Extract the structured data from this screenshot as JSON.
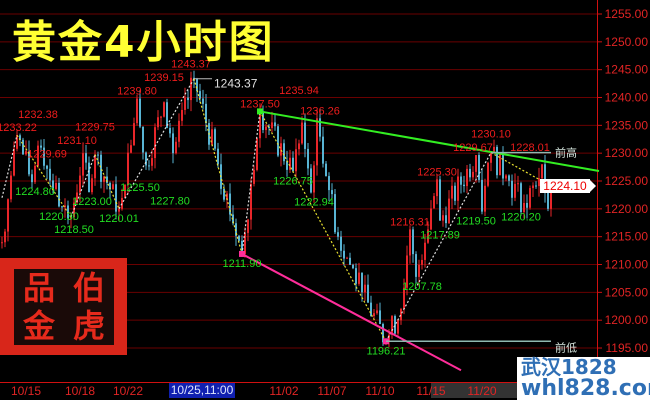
{
  "chart_data": {
    "type": "candlestick",
    "title": "黄金4小时图",
    "ylim": [
      1195,
      1255
    ],
    "yticks": [
      "1255.00",
      "1250.00",
      "1245.00",
      "1240.00",
      "1235.00",
      "1230.00",
      "1225.00",
      "1220.00",
      "1215.00",
      "1210.00",
      "1205.00",
      "1200.00",
      "1195.00"
    ],
    "xticks": [
      {
        "label": "10/15",
        "bar": 8
      },
      {
        "label": "10/18",
        "bar": 26
      },
      {
        "label": "10/22",
        "bar": 42
      },
      {
        "label": "11/02",
        "bar": 94
      },
      {
        "label": "11/07",
        "bar": 110
      },
      {
        "label": "11/10",
        "bar": 126
      },
      {
        "label": "11/15",
        "bar": 143
      },
      {
        "label": "11/20",
        "bar": 160
      }
    ],
    "crosshair_date": "10/25,11:00",
    "last_price": "1224.10",
    "colors": {
      "up": "#e8262a",
      "down": "#58b4d4",
      "grid": "#6a0000",
      "axis": "#d01010",
      "trend_upper": "#33ee22",
      "trend_lower": "#ff2d9a",
      "title": "#ffff33"
    },
    "price_path": [
      [
        0,
        1214
      ],
      [
        5,
        1233.22
      ],
      [
        10,
        1224.8
      ],
      [
        13,
        1231
      ],
      [
        20,
        1220.3
      ],
      [
        23,
        1218.5
      ],
      [
        27,
        1230
      ],
      [
        29,
        1223
      ],
      [
        31,
        1229.75
      ],
      [
        39,
        1220.01
      ],
      [
        45,
        1239.8
      ],
      [
        48,
        1227.8
      ],
      [
        54,
        1239.15
      ],
      [
        57,
        1230
      ],
      [
        64,
        1243.37
      ],
      [
        72,
        1228
      ],
      [
        80,
        1211.9
      ],
      [
        86,
        1237.5
      ],
      [
        97,
        1226.75
      ],
      [
        100,
        1235.5
      ],
      [
        103,
        1222.94
      ],
      [
        105,
        1236.26
      ],
      [
        112,
        1215
      ],
      [
        120,
        1205
      ],
      [
        128,
        1196.21
      ],
      [
        133,
        1202
      ],
      [
        136,
        1216.31
      ],
      [
        138,
        1207.78
      ],
      [
        145,
        1225.3
      ],
      [
        146,
        1217.89
      ],
      [
        158,
        1229.67
      ],
      [
        160,
        1219.5
      ],
      [
        163,
        1230.1
      ],
      [
        168,
        1226
      ],
      [
        175,
        1220.2
      ],
      [
        180,
        1228.01
      ],
      [
        182,
        1220
      ],
      [
        183,
        1224.1
      ]
    ],
    "zigzag": [
      [
        0,
        1222
      ],
      [
        5,
        1233.22
      ],
      [
        23,
        1218.5
      ],
      [
        31,
        1229.75
      ],
      [
        39,
        1220.01
      ],
      [
        64,
        1243.37
      ],
      [
        80,
        1211.9
      ],
      [
        86,
        1237.5
      ],
      [
        128,
        1196.21
      ],
      [
        163,
        1230.1
      ],
      [
        183,
        1224.1
      ]
    ],
    "labels": [
      {
        "text": "1233.22",
        "bar": 5,
        "price": 1233.22,
        "kind": "high"
      },
      {
        "text": "1232.38",
        "bar": 12,
        "price": 1231.5,
        "kind": "high"
      },
      {
        "text": "1229.69",
        "bar": 15,
        "price": 1228.5,
        "kind": "high"
      },
      {
        "text": "1231.10",
        "bar": 25,
        "price": 1228.8,
        "kind": "high"
      },
      {
        "text": "1229.75",
        "bar": 31,
        "price": 1229.75,
        "kind": "high"
      },
      {
        "text": "1239.80",
        "bar": 45,
        "price": 1239.8,
        "kind": "high"
      },
      {
        "text": "1239.15",
        "bar": 54,
        "price": 1239.15,
        "kind": "high"
      },
      {
        "text": "1243.37",
        "bar": 63,
        "price": 1243.37,
        "kind": "high"
      },
      {
        "text": "1237.50",
        "bar": 86,
        "price": 1237.5,
        "kind": "high"
      },
      {
        "text": "1235.94",
        "bar": 99,
        "price": 1235.94,
        "kind": "high"
      },
      {
        "text": "1236.26",
        "bar": 106,
        "price": 1236.26,
        "kind": "high"
      },
      {
        "text": "1216.31",
        "bar": 136,
        "price": 1216.31,
        "kind": "high"
      },
      {
        "text": "1225.30",
        "bar": 145,
        "price": 1225.3,
        "kind": "high"
      },
      {
        "text": "1229.67",
        "bar": 157,
        "price": 1229.67,
        "kind": "high"
      },
      {
        "text": "1230.10",
        "bar": 163,
        "price": 1231.0,
        "kind": "high"
      },
      {
        "text": "1228.01",
        "bar": 176,
        "price": 1229.7,
        "kind": "high"
      },
      {
        "text": "1224.80",
        "bar": 11,
        "price": 1224.8,
        "kind": "low"
      },
      {
        "text": "1220.30",
        "bar": 19,
        "price": 1220.3,
        "kind": "low"
      },
      {
        "text": "1218.50",
        "bar": 24,
        "price": 1218.5,
        "kind": "low"
      },
      {
        "text": "1223.00",
        "bar": 30,
        "price": 1223.0,
        "kind": "low"
      },
      {
        "text": "1220.01",
        "bar": 39,
        "price": 1220.01,
        "kind": "low"
      },
      {
        "text": "1225.50",
        "bar": 46,
        "price": 1225.5,
        "kind": "low"
      },
      {
        "text": "1227.80",
        "bar": 56,
        "price": 1227.8,
        "kind": "low"
      },
      {
        "text": "1211.90",
        "bar": 80,
        "price": 1211.9,
        "kind": "low"
      },
      {
        "text": "1226.75",
        "bar": 97,
        "price": 1226.75,
        "kind": "low"
      },
      {
        "text": "1222.94",
        "bar": 104,
        "price": 1222.94,
        "kind": "low"
      },
      {
        "text": "1196.21",
        "bar": 128,
        "price": 1196.21,
        "kind": "low"
      },
      {
        "text": "1207.78",
        "bar": 140,
        "price": 1207.78,
        "kind": "low"
      },
      {
        "text": "1217.89",
        "bar": 146,
        "price": 1217.89,
        "kind": "low"
      },
      {
        "text": "1219.50",
        "bar": 158,
        "price": 1219.5,
        "kind": "low"
      },
      {
        "text": "1220.20",
        "bar": 173,
        "price": 1220.2,
        "kind": "low"
      }
    ],
    "peak_marker": {
      "text": "1243.37",
      "price": 1243.37
    },
    "prev_high": {
      "text": "前高",
      "price": 1230.1
    },
    "prev_low": {
      "text": "前低",
      "price": 1196.21
    },
    "trend_upper": [
      [
        86,
        1237.5
      ],
      [
        199,
        1226.8
      ]
    ],
    "trend_lower": [
      [
        80,
        1211.9
      ],
      [
        153,
        1191
      ]
    ]
  },
  "logo": {
    "chars": [
      "品",
      "伯",
      "金",
      "虎"
    ]
  },
  "watermark": {
    "line1": "武汉1828",
    "line2": "whl828.com"
  }
}
